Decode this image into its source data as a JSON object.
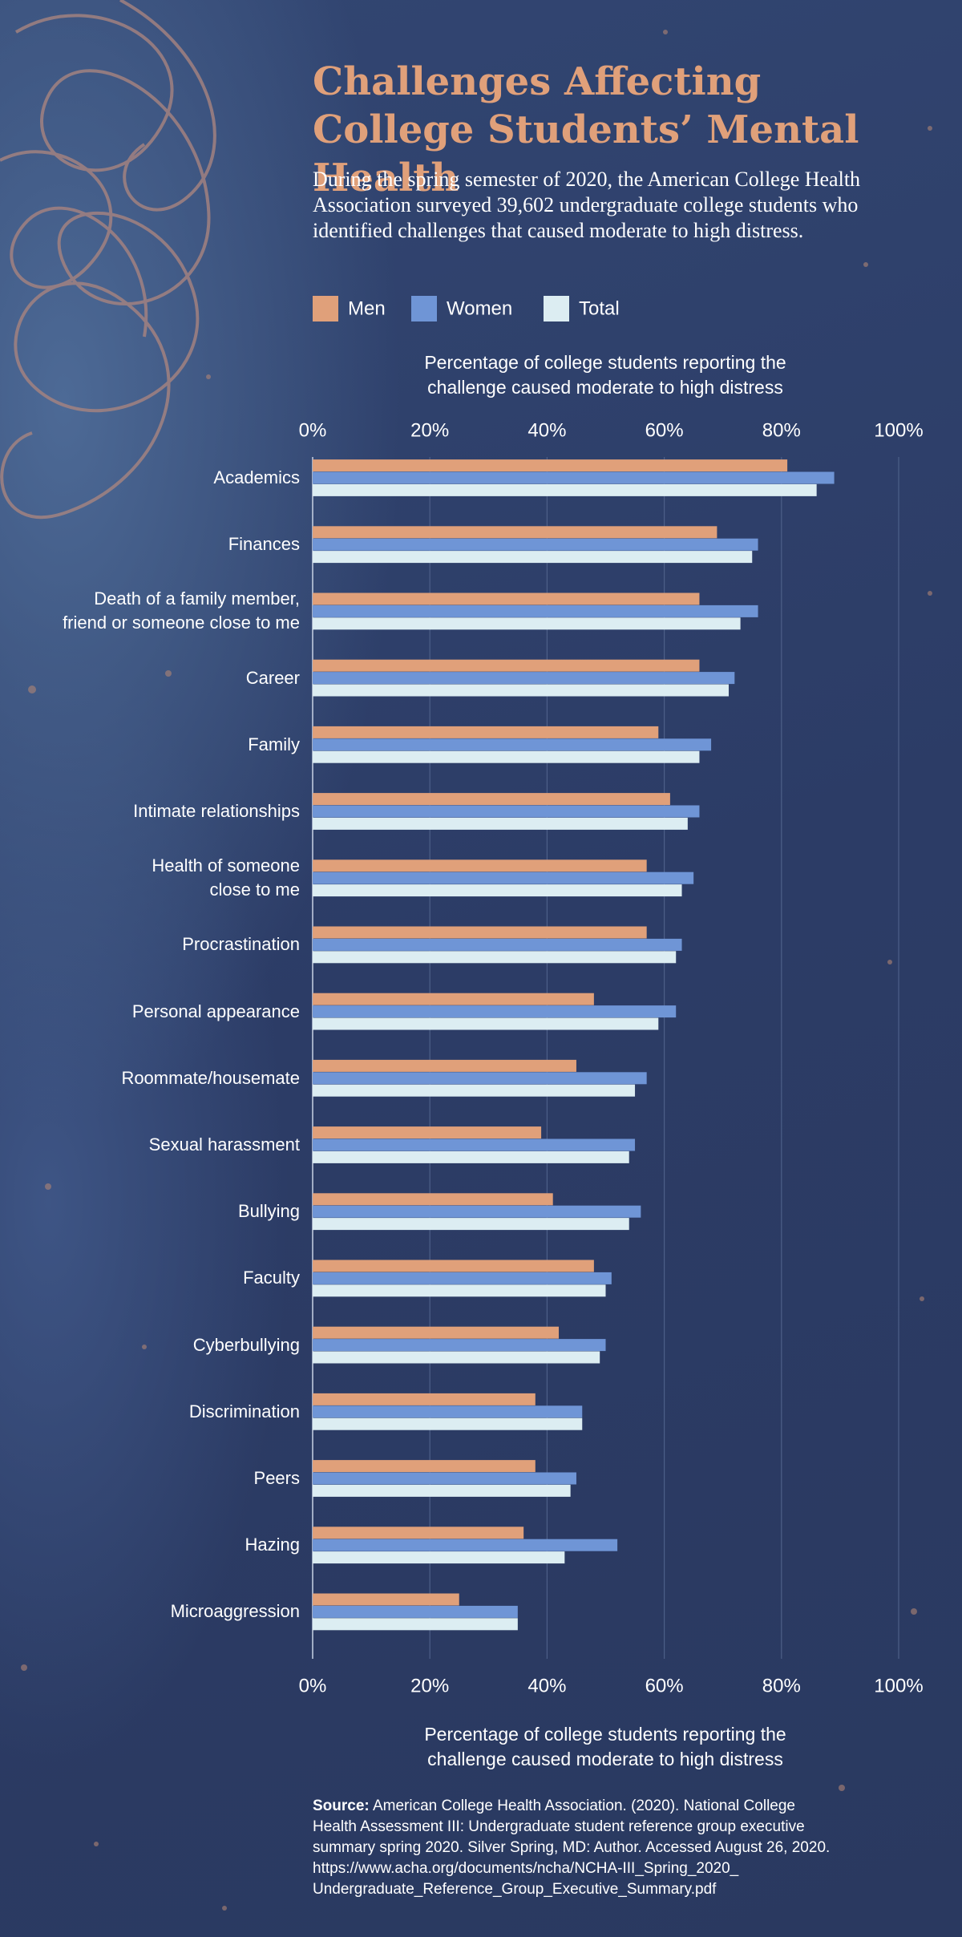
{
  "chart_data": {
    "type": "hbar-grouped",
    "title": "Challenges Affecting College Students’ Mental Health",
    "subtitle": "During the spring semester of 2020, the American College Health Association surveyed 39,602 undergraduate college students who identified challenges that caused moderate to high distress.",
    "x_label": "Percentage of college students reporting the\nchallenge caused moderate to high distress",
    "categories": [
      "Academics",
      "Finances",
      "Death of a family member,\nfriend or someone close to me",
      "Career",
      "Family",
      "Intimate relationships",
      "Health of someone\nclose to me",
      "Procrastination",
      "Personal appearance",
      "Roommate/housemate",
      "Sexual harassment",
      "Bullying",
      "Faculty",
      "Cyberbullying",
      "Discrimination",
      "Peers",
      "Hazing",
      "Microaggression"
    ],
    "series": [
      {
        "name": "Men",
        "color": "#e0a07a",
        "values": [
          81,
          69,
          66,
          66,
          59,
          61,
          57,
          57,
          48,
          45,
          39,
          41,
          48,
          42,
          38,
          38,
          36,
          25
        ]
      },
      {
        "name": "Women",
        "color": "#6f95d6",
        "values": [
          89,
          76,
          76,
          72,
          68,
          66,
          65,
          63,
          62,
          57,
          55,
          56,
          51,
          50,
          46,
          45,
          52,
          35
        ]
      },
      {
        "name": "Total",
        "color": "#dcedf2",
        "values": [
          86,
          75,
          73,
          71,
          66,
          64,
          63,
          62,
          59,
          55,
          54,
          54,
          50,
          49,
          46,
          44,
          43,
          35
        ]
      }
    ],
    "xlim": [
      0,
      100
    ],
    "xticks": [
      {
        "value": 0,
        "label": "0%"
      },
      {
        "value": 20,
        "label": "20%"
      },
      {
        "value": 40,
        "label": "40%"
      },
      {
        "value": 60,
        "label": "60%"
      },
      {
        "value": 80,
        "label": "80%"
      },
      {
        "value": 100,
        "label": "100%"
      }
    ],
    "grid": true
  },
  "source": {
    "label": "Source:",
    "text": "American College Health Association. (2020). National College\nHealth Assessment III: Undergraduate student reference group executive\nsummary spring 2020. Silver Spring, MD: Author. Accessed August 26, 2020.\nhttps://www.acha.org/documents/ncha/NCHA-III_Spring_2020_\nUndergraduate_Reference_Group_Executive_Summary.pdf"
  }
}
